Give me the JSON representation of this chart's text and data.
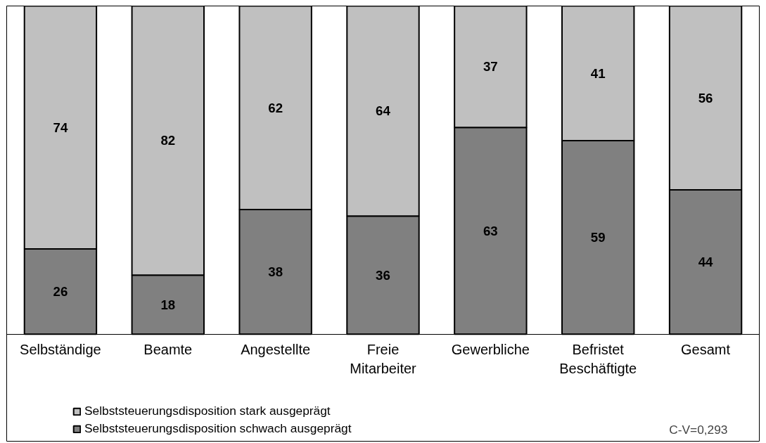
{
  "chart_data": {
    "type": "bar",
    "stacked": true,
    "data_labels": true,
    "grid": false,
    "legend": "bottom left",
    "categories": [
      "Selbständige",
      "Beamte",
      "Angestellte",
      "Freie\nMitarbeiter",
      "Gewerbliche",
      "Befristet\nBeschäftigte",
      "Gesamt"
    ],
    "series": [
      {
        "name": "Selbststeuerungsdisposition schwach ausgeprägt",
        "color": "#808080",
        "values": [
          26,
          18,
          38,
          36,
          63,
          59,
          44
        ]
      },
      {
        "name": "Selbststeuerungsdisposition stark ausgeprägt",
        "color": "#c0c0c0",
        "values": [
          74,
          82,
          62,
          64,
          37,
          41,
          56
        ]
      }
    ],
    "annotations": [
      "C-V=0,293"
    ]
  }
}
